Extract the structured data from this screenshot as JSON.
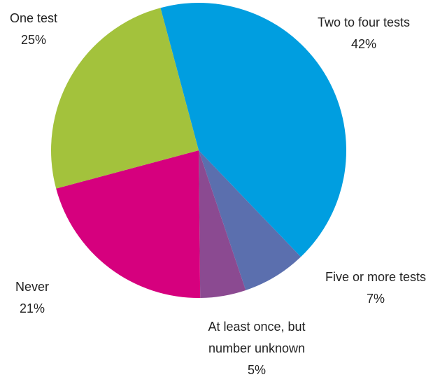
{
  "chart_data": {
    "type": "pie",
    "categories": [
      "Two to four tests",
      "Five or more tests",
      "At least once, but number unknown",
      "Never",
      "One test"
    ],
    "values": [
      42,
      7,
      5,
      21,
      25
    ],
    "value_labels": [
      "42%",
      "7%",
      "5%",
      "21%",
      "25%"
    ],
    "colors": [
      "#009ee0",
      "#5b6fae",
      "#8b4a91",
      "#d6007e",
      "#a3c23c"
    ]
  }
}
